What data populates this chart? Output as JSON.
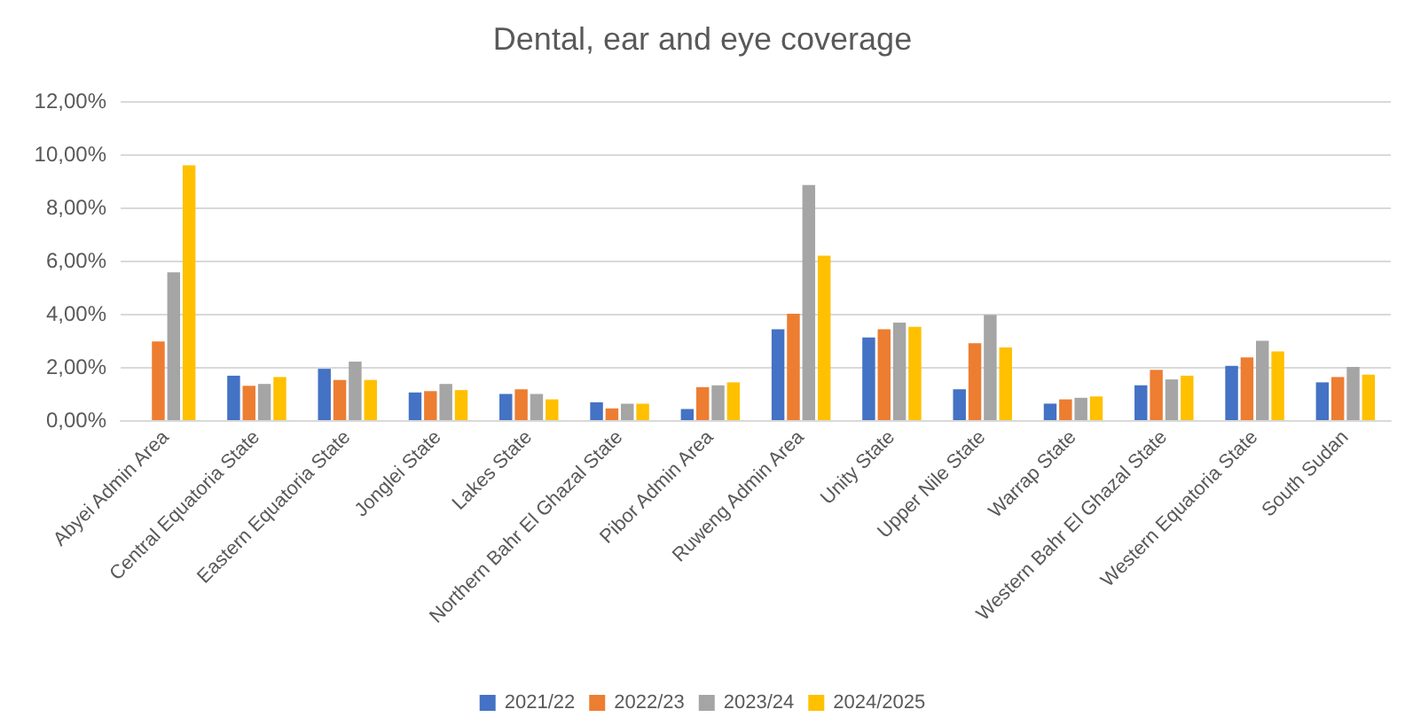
{
  "chart_data": {
    "type": "bar",
    "title": "Dental, ear and eye coverage",
    "categories": [
      "Abyei Admin Area",
      "Central Equatoria State",
      "Eastern Equatoria State",
      "Jonglei State",
      "Lakes State",
      "Northern Bahr El Ghazal State",
      "Pibor Admin Area",
      "Ruweng Admin Area",
      "Unity State",
      "Upper Nile State",
      "Warrap State",
      "Western Bahr El Ghazal State",
      "Western Equatoria State",
      "South Sudan"
    ],
    "series": [
      {
        "name": "2021/22",
        "color": "#4472c4",
        "values": [
          null,
          1.67,
          1.93,
          1.04,
          0.98,
          0.67,
          0.42,
          3.42,
          3.11,
          1.16,
          0.62,
          1.31,
          2.04,
          1.42
        ]
      },
      {
        "name": "2022/23",
        "color": "#ed7d31",
        "values": [
          2.96,
          1.29,
          1.51,
          1.09,
          1.16,
          0.44,
          1.24,
          4.0,
          3.42,
          2.89,
          0.78,
          1.89,
          2.36,
          1.62
        ]
      },
      {
        "name": "2023/24",
        "color": "#a5a5a5",
        "values": [
          5.56,
          1.36,
          2.2,
          1.36,
          0.98,
          0.62,
          1.31,
          8.84,
          3.67,
          3.96,
          0.84,
          1.53,
          2.98,
          2.0
        ]
      },
      {
        "name": "2024/2025",
        "color": "#ffc000",
        "values": [
          9.58,
          1.62,
          1.51,
          1.13,
          0.78,
          0.62,
          1.42,
          6.18,
          3.51,
          2.73,
          0.89,
          1.67,
          2.58,
          1.71
        ]
      }
    ],
    "ylim": [
      0,
      12
    ],
    "yticks": [
      {
        "value": 0,
        "label": "0,00%"
      },
      {
        "value": 2,
        "label": "2,00%"
      },
      {
        "value": 4,
        "label": "4,00%"
      },
      {
        "value": 6,
        "label": "6,00%"
      },
      {
        "value": 8,
        "label": "8,00%"
      },
      {
        "value": 10,
        "label": "10,00%"
      },
      {
        "value": 12,
        "label": "12,00%"
      }
    ],
    "grid": "y",
    "legend": "bottom"
  }
}
